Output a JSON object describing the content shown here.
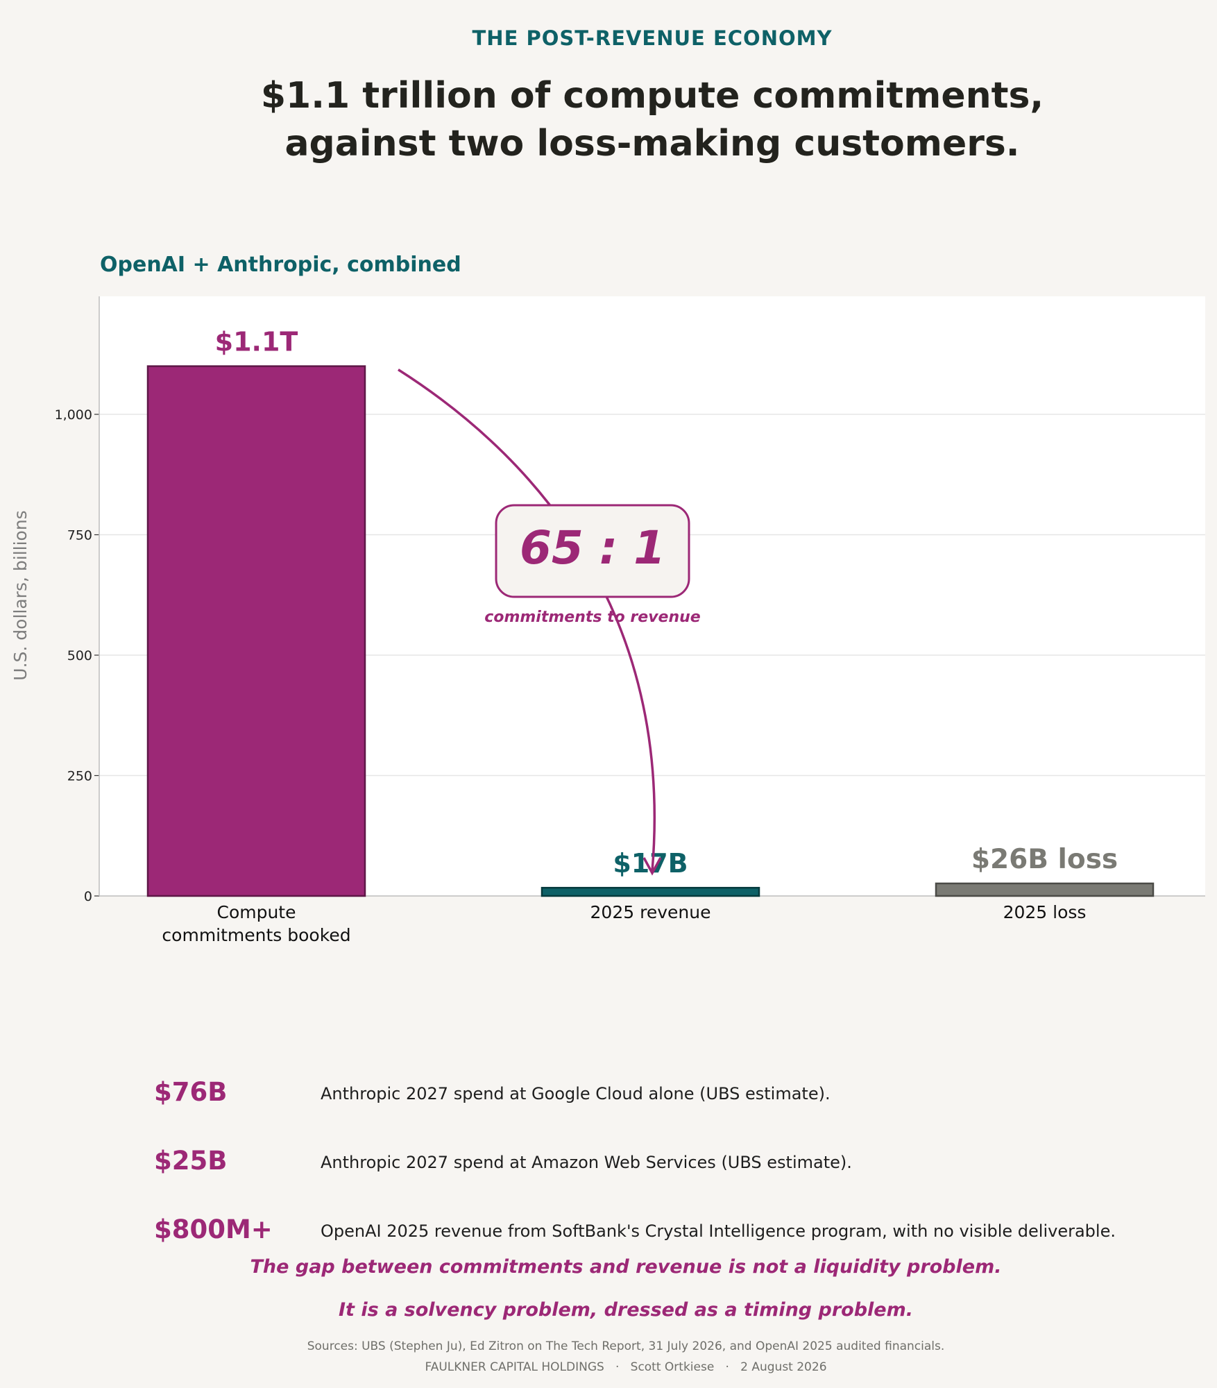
{
  "kicker": "THE POST-REVENUE ECONOMY",
  "headline": {
    "line1": "$1.1 trillion of compute commitments,",
    "line2": "against two loss-making customers."
  },
  "subtitle": "OpenAI + Anthropic, combined",
  "chart_data": {
    "type": "bar",
    "categories": [
      "Compute\ncommitments booked",
      "2025 revenue",
      "2025 loss"
    ],
    "values": [
      1100,
      17,
      26
    ],
    "value_labels": [
      "$1.1T",
      "$17B",
      "$26B loss"
    ],
    "colors": [
      "#9c2876",
      "#0e6167",
      "#7a7a74"
    ],
    "title": "OpenAI + Anthropic, combined",
    "xlabel": "",
    "ylabel": "U.S. dollars, billions",
    "ylim": [
      0,
      1245
    ],
    "yticks": [
      0,
      250,
      500,
      750,
      1000
    ],
    "ytick_labels": [
      "0",
      "250",
      "500",
      "750",
      "1,000"
    ],
    "grid": true,
    "annotation": {
      "ratio": "65 : 1",
      "caption": "commitments to revenue",
      "from_category": "Compute\ncommitments booked",
      "to_category": "2025 revenue"
    }
  },
  "callouts": [
    {
      "value": "$76B",
      "text": "Anthropic 2027 spend at Google Cloud alone (UBS estimate)."
    },
    {
      "value": "$25B",
      "text": "Anthropic 2027 spend at Amazon Web Services (UBS estimate)."
    },
    {
      "value": "$800M+",
      "text": "OpenAI 2025 revenue from SoftBank's Crystal Intelligence program, with no visible deliverable."
    }
  ],
  "conclusion": {
    "line1": "The gap between commitments and revenue is not a liquidity problem.",
    "line2": "It is a solvency problem, dressed as a timing problem."
  },
  "sources": "Sources: UBS (Stephen Ju), Ed Zitron on The Tech Report, 31 July 2026, and OpenAI 2025 audited financials.",
  "footer": "FAULKNER CAPITAL HOLDINGS   ·   Scott Ortkiese   ·   2 August 2026"
}
